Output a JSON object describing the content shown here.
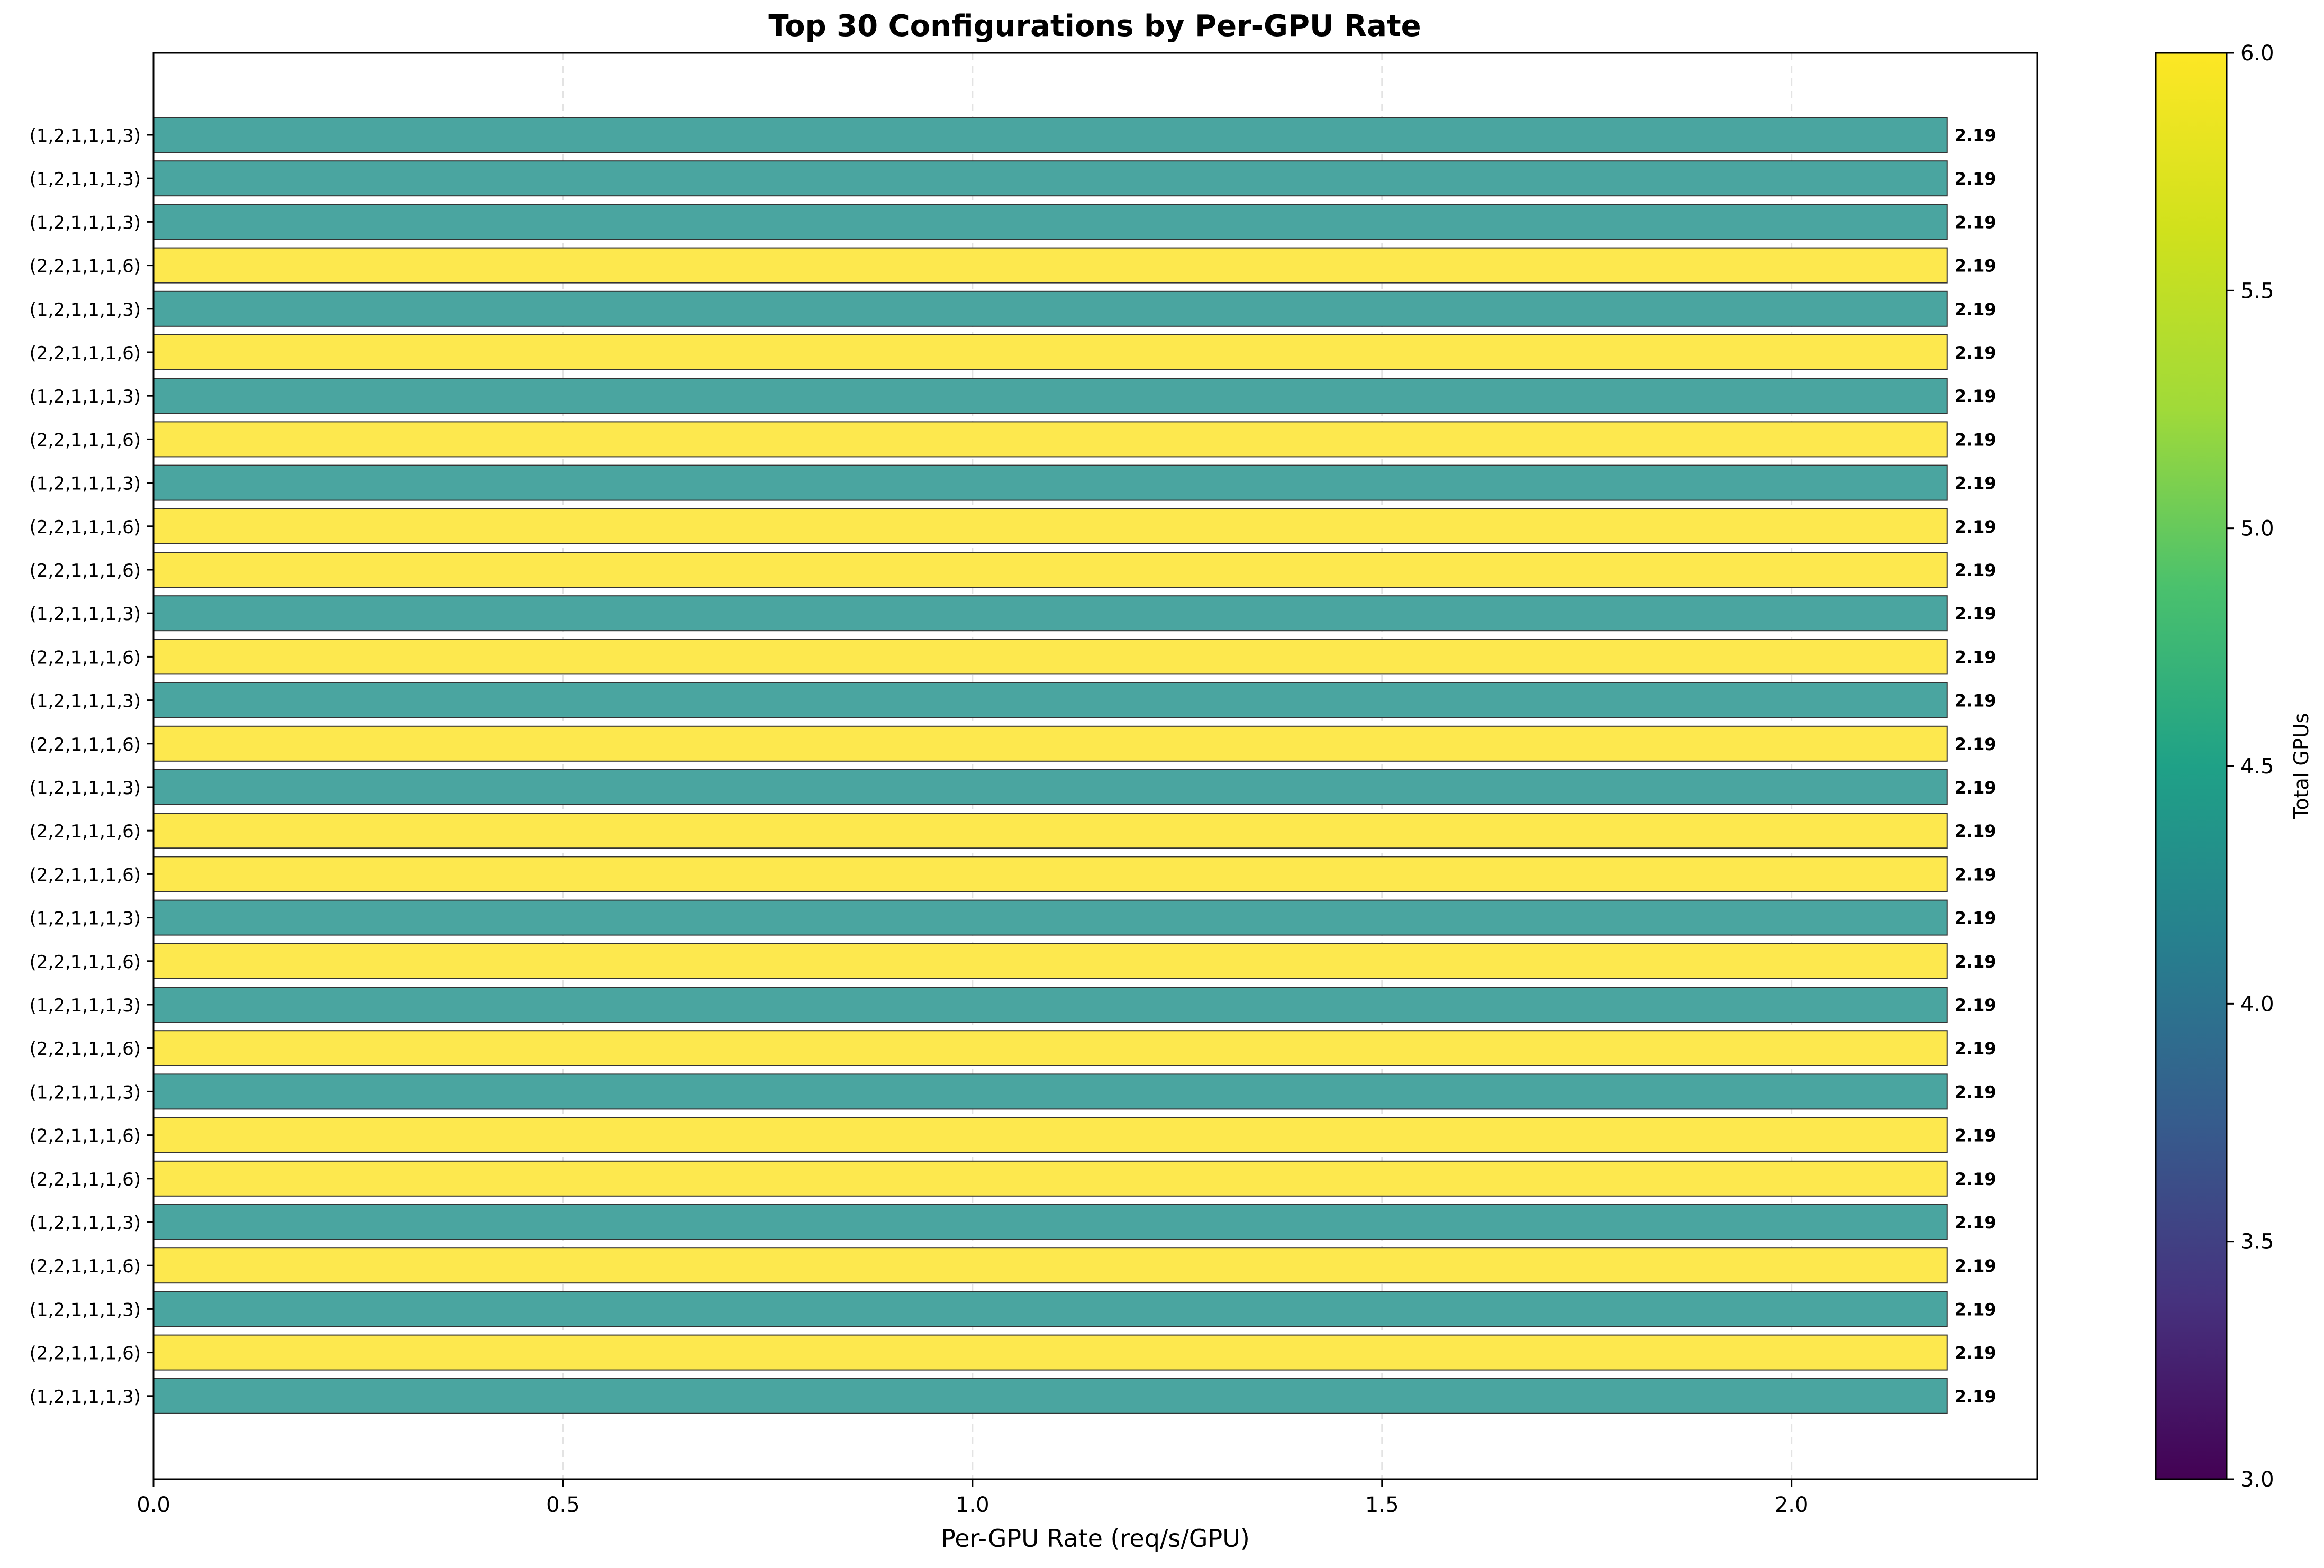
{
  "chart_data": {
    "type": "bar",
    "orientation": "horizontal",
    "title": "Top 30 Configurations by Per-GPU Rate",
    "xlabel": "Per-GPU Rate (req/s/GPU)",
    "ylabel": "",
    "xlim": [
      0,
      2.3
    ],
    "x_ticks": [
      "0.0",
      "0.5",
      "1.0",
      "1.5",
      "2.0"
    ],
    "grid": "x-axis dashed",
    "categories": [
      "(1,2,1,1,1,3)",
      "(1,2,1,1,1,3)",
      "(1,2,1,1,1,3)",
      "(2,2,1,1,1,6)",
      "(1,2,1,1,1,3)",
      "(2,2,1,1,1,6)",
      "(1,2,1,1,1,3)",
      "(2,2,1,1,1,6)",
      "(1,2,1,1,1,3)",
      "(2,2,1,1,1,6)",
      "(2,2,1,1,1,6)",
      "(1,2,1,1,1,3)",
      "(2,2,1,1,1,6)",
      "(1,2,1,1,1,3)",
      "(2,2,1,1,1,6)",
      "(1,2,1,1,1,3)",
      "(2,2,1,1,1,6)",
      "(2,2,1,1,1,6)",
      "(1,2,1,1,1,3)",
      "(2,2,1,1,1,6)",
      "(1,2,1,1,1,3)",
      "(2,2,1,1,1,6)",
      "(1,2,1,1,1,3)",
      "(2,2,1,1,1,6)",
      "(2,2,1,1,1,6)",
      "(1,2,1,1,1,3)",
      "(2,2,1,1,1,6)",
      "(1,2,1,1,1,3)",
      "(2,2,1,1,1,6)",
      "(1,2,1,1,1,3)"
    ],
    "values": [
      2.19,
      2.19,
      2.19,
      2.19,
      2.19,
      2.19,
      2.19,
      2.19,
      2.19,
      2.19,
      2.19,
      2.19,
      2.19,
      2.19,
      2.19,
      2.19,
      2.19,
      2.19,
      2.19,
      2.19,
      2.19,
      2.19,
      2.19,
      2.19,
      2.19,
      2.19,
      2.19,
      2.19,
      2.19,
      2.19
    ],
    "value_labels": [
      "2.19",
      "2.19",
      "2.19",
      "2.19",
      "2.19",
      "2.19",
      "2.19",
      "2.19",
      "2.19",
      "2.19",
      "2.19",
      "2.19",
      "2.19",
      "2.19",
      "2.19",
      "2.19",
      "2.19",
      "2.19",
      "2.19",
      "2.19",
      "2.19",
      "2.19",
      "2.19",
      "2.19",
      "2.19",
      "2.19",
      "2.19",
      "2.19",
      "2.19",
      "2.19"
    ],
    "color_values": [
      3,
      3,
      3,
      6,
      3,
      6,
      3,
      6,
      3,
      6,
      6,
      3,
      6,
      3,
      6,
      3,
      6,
      6,
      3,
      6,
      3,
      6,
      3,
      6,
      6,
      3,
      6,
      3,
      6,
      3
    ],
    "colorbar": {
      "label": "Total GPUs",
      "range": [
        3.0,
        6.0
      ],
      "colormap": "viridis",
      "ticks": [
        "3.0",
        "3.5",
        "4.0",
        "4.5",
        "5.0",
        "5.5",
        "6.0"
      ]
    },
    "bar_colors": {
      "3": "#4aa5a0",
      "6": "#fde84e"
    }
  }
}
